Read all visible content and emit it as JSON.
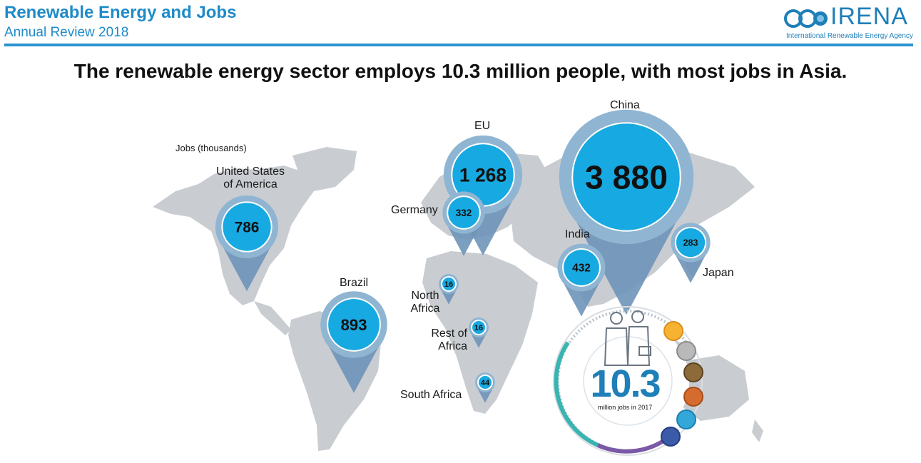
{
  "header": {
    "title": "Renewable Energy and Jobs",
    "subtitle": "Annual Review 2018"
  },
  "logo": {
    "word": "IRENA",
    "tagline": "International Renewable Energy Agency"
  },
  "headline": "The renewable energy sector employs 10.3 million people, with most jobs in Asia.",
  "unit_label": "Jobs (thousands)",
  "colors": {
    "brand_blue": "#1f8bc8",
    "pin_fill": "#17a9e1",
    "pin_halo": "#8fb5d2",
    "pin_tail": "#6e94b8",
    "map_land": "#c9cdd1"
  },
  "chart_data": {
    "type": "bubble-map",
    "title": "The renewable energy sector employs 10.3 million people, with most jobs in Asia.",
    "unit": "Jobs (thousands)",
    "regions": [
      {
        "name": "United States of America",
        "name_lines": [
          "United States",
          "of America"
        ],
        "value": 786,
        "display": "786"
      },
      {
        "name": "Brazil",
        "name_lines": [
          "Brazil"
        ],
        "value": 893,
        "display": "893"
      },
      {
        "name": "EU",
        "name_lines": [
          "EU"
        ],
        "value": 1268,
        "display": "1 268"
      },
      {
        "name": "Germany",
        "name_lines": [
          "Germany"
        ],
        "value": 332,
        "display": "332"
      },
      {
        "name": "China",
        "name_lines": [
          "China"
        ],
        "value": 3880,
        "display": "3 880"
      },
      {
        "name": "India",
        "name_lines": [
          "India"
        ],
        "value": 432,
        "display": "432"
      },
      {
        "name": "Japan",
        "name_lines": [
          "Japan"
        ],
        "value": 283,
        "display": "283"
      },
      {
        "name": "North Africa",
        "name_lines": [
          "North",
          "Africa"
        ],
        "value": 16,
        "display": "16"
      },
      {
        "name": "Rest of Africa",
        "name_lines": [
          "Rest of",
          "Africa"
        ],
        "value": 16,
        "display": "16"
      },
      {
        "name": "South Africa",
        "name_lines": [
          "South Africa"
        ],
        "value": 44,
        "display": "44"
      }
    ],
    "total": {
      "value": 10.3,
      "display": "10.3",
      "caption": "million jobs in 2017"
    }
  }
}
